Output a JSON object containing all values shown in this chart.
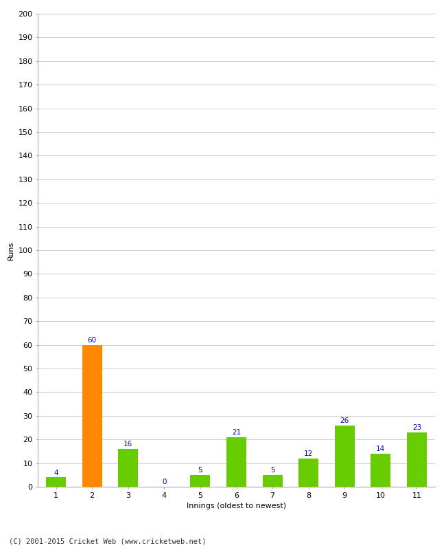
{
  "categories": [
    "1",
    "2",
    "3",
    "4",
    "5",
    "6",
    "7",
    "8",
    "9",
    "10",
    "11"
  ],
  "values": [
    4,
    60,
    16,
    0,
    5,
    21,
    5,
    12,
    26,
    14,
    23
  ],
  "bar_colors": [
    "#66cc00",
    "#ff8800",
    "#66cc00",
    "#66cc00",
    "#66cc00",
    "#66cc00",
    "#66cc00",
    "#66cc00",
    "#66cc00",
    "#66cc00",
    "#66cc00"
  ],
  "xlabel": "Innings (oldest to newest)",
  "ylabel": "Runs",
  "ylim": [
    0,
    200
  ],
  "yticks": [
    0,
    10,
    20,
    30,
    40,
    50,
    60,
    70,
    80,
    90,
    100,
    110,
    120,
    130,
    140,
    150,
    160,
    170,
    180,
    190,
    200
  ],
  "title": "",
  "label_color": "#0000cc",
  "label_fontsize": 7.5,
  "axis_label_fontsize": 8,
  "tick_fontsize": 8,
  "footer": "(C) 2001-2015 Cricket Web (www.cricketweb.net)",
  "footer_fontsize": 7.5,
  "background_color": "#ffffff",
  "grid_color": "#cccccc",
  "bar_width": 0.55
}
